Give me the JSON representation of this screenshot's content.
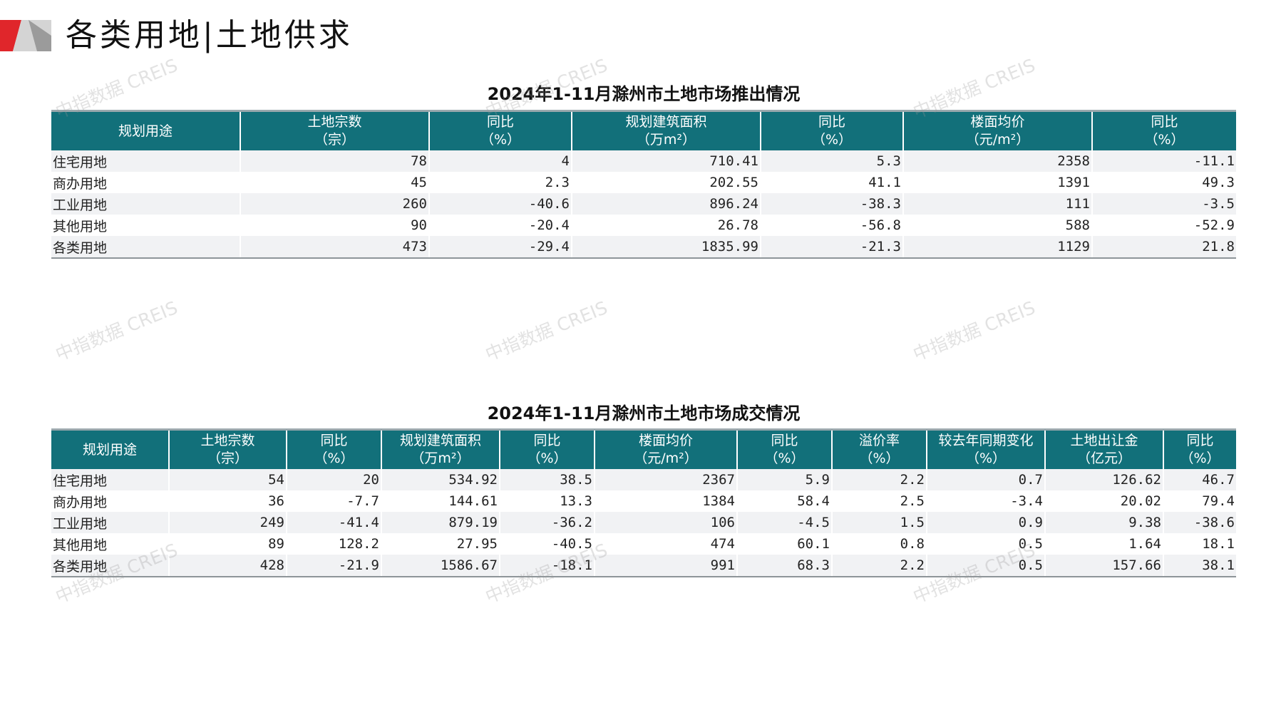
{
  "page": {
    "title": "各类用地|土地供求"
  },
  "colors": {
    "header_bg": "#12707a",
    "accent_red": "#e0262b",
    "accent_gray": "#cfcfcf"
  },
  "watermark": "中指数据 CREIS",
  "supply": {
    "title": "2024年1-11月滁州市土地市场推出情况",
    "headers": [
      {
        "l1": "规划用途",
        "l2": ""
      },
      {
        "l1": "土地宗数",
        "l2": "（宗）"
      },
      {
        "l1": "同比",
        "l2": "（%）"
      },
      {
        "l1": "规划建筑面积",
        "l2": "（万m²）"
      },
      {
        "l1": "同比",
        "l2": "（%）"
      },
      {
        "l1": "楼面均价",
        "l2": "（元/m²）"
      },
      {
        "l1": "同比",
        "l2": "（%）"
      }
    ],
    "rows": [
      [
        "住宅用地",
        "78",
        "4",
        "710.41",
        "5.3",
        "2358",
        "-11.1"
      ],
      [
        "商办用地",
        "45",
        "2.3",
        "202.55",
        "41.1",
        "1391",
        "49.3"
      ],
      [
        "工业用地",
        "260",
        "-40.6",
        "896.24",
        "-38.3",
        "111",
        "-3.5"
      ],
      [
        "其他用地",
        "90",
        "-20.4",
        "26.78",
        "-56.8",
        "588",
        "-52.9"
      ],
      [
        "各类用地",
        "473",
        "-29.4",
        "1835.99",
        "-21.3",
        "1129",
        "21.8"
      ]
    ]
  },
  "deal": {
    "title": "2024年1-11月滁州市土地市场成交情况",
    "headers": [
      {
        "l1": "规划用途",
        "l2": ""
      },
      {
        "l1": "土地宗数",
        "l2": "（宗）"
      },
      {
        "l1": "同比",
        "l2": "（%）"
      },
      {
        "l1": "规划建筑面积",
        "l2": "（万m²）"
      },
      {
        "l1": "同比",
        "l2": "（%）"
      },
      {
        "l1": "楼面均价",
        "l2": "（元/m²）"
      },
      {
        "l1": "同比",
        "l2": "（%）"
      },
      {
        "l1": "溢价率",
        "l2": "（%）"
      },
      {
        "l1": "较去年同期变化",
        "l2": "（%）"
      },
      {
        "l1": "土地出让金",
        "l2": "（亿元）"
      },
      {
        "l1": "同比",
        "l2": "（%）"
      }
    ],
    "rows": [
      [
        "住宅用地",
        "54",
        "20",
        "534.92",
        "38.5",
        "2367",
        "5.9",
        "2.2",
        "0.7",
        "126.62",
        "46.7"
      ],
      [
        "商办用地",
        "36",
        "-7.7",
        "144.61",
        "13.3",
        "1384",
        "58.4",
        "2.5",
        "-3.4",
        "20.02",
        "79.4"
      ],
      [
        "工业用地",
        "249",
        "-41.4",
        "879.19",
        "-36.2",
        "106",
        "-4.5",
        "1.5",
        "0.9",
        "9.38",
        "-38.6"
      ],
      [
        "其他用地",
        "89",
        "128.2",
        "27.95",
        "-40.5",
        "474",
        "60.1",
        "0.8",
        "0.5",
        "1.64",
        "18.1"
      ],
      [
        "各类用地",
        "428",
        "-21.9",
        "1586.67",
        "-18.1",
        "991",
        "68.3",
        "2.2",
        "0.5",
        "157.66",
        "38.1"
      ]
    ]
  }
}
